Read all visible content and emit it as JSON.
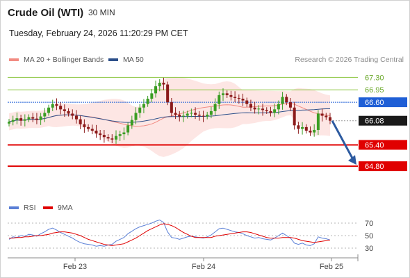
{
  "header": {
    "instrument": "Crude Oil (WTI)",
    "interval": "30 MIN",
    "datetime": "Tuesday, February 24, 2026 11:20:29 PM CET"
  },
  "legend": {
    "ma20_label": "MA 20 + Bollinger Bands",
    "ma20_color": "#f28b82",
    "ma50_label": "MA 50",
    "ma50_color": "#2c4f8a",
    "credit": "Research © 2026 Trading Central"
  },
  "rsi_legend": {
    "rsi_label": "RSI",
    "rsi_color": "#5a7fd6",
    "ma9_label": "9MA",
    "ma9_color": "#e00000"
  },
  "chart_data": {
    "type": "candlestick",
    "ylim": [
      64.0,
      67.6
    ],
    "levels": [
      {
        "value": 67.3,
        "label": "67.30",
        "kind": "resistance",
        "color": "#8cc63f",
        "text_color": "#6aa82a"
      },
      {
        "value": 66.95,
        "label": "66.95",
        "kind": "resistance",
        "color": "#8cc63f",
        "text_color": "#6aa82a"
      },
      {
        "value": 66.6,
        "label": "66.60",
        "kind": "pivot",
        "color": "#1f5fd6",
        "text_color": "#ffffff"
      },
      {
        "value": 66.08,
        "label": "66.08",
        "kind": "last",
        "color": "#aaaaaa",
        "text_color": "#ffffff"
      },
      {
        "value": 65.4,
        "label": "65.40",
        "kind": "support",
        "color": "#e00000",
        "text_color": "#ffffff"
      },
      {
        "value": 64.8,
        "label": "64.80",
        "kind": "support",
        "color": "#e00000",
        "text_color": "#ffffff"
      }
    ],
    "x_ticks": [
      "Feb 23",
      "Feb 24",
      "Feb 25"
    ],
    "rsi_ticks": [
      70,
      50,
      30
    ],
    "close": [
      66.05,
      66.1,
      66.15,
      66.08,
      66.12,
      66.18,
      66.14,
      66.1,
      66.2,
      66.3,
      66.45,
      66.55,
      66.5,
      66.4,
      66.35,
      66.28,
      66.22,
      66.12,
      65.98,
      65.9,
      65.85,
      65.8,
      65.72,
      65.68,
      65.62,
      65.58,
      65.55,
      65.65,
      65.7,
      65.75,
      65.95,
      66.1,
      66.3,
      66.45,
      66.55,
      66.7,
      66.85,
      67.05,
      67.15,
      67.1,
      66.6,
      66.3,
      66.25,
      66.2,
      66.22,
      66.28,
      66.3,
      66.25,
      66.22,
      66.2,
      66.25,
      66.35,
      66.55,
      66.8,
      66.85,
      66.8,
      66.75,
      66.72,
      66.7,
      66.65,
      66.55,
      66.45,
      66.4,
      66.42,
      66.38,
      66.35,
      66.3,
      66.4,
      66.55,
      66.75,
      66.6,
      66.45,
      65.95,
      65.85,
      65.9,
      65.8,
      65.75,
      65.82,
      66.28,
      66.22,
      66.18,
      66.08
    ],
    "rsi": [
      44,
      48,
      47,
      50,
      49,
      52,
      51,
      49,
      53,
      56,
      60,
      62,
      59,
      55,
      52,
      49,
      46,
      42,
      39,
      37,
      36,
      35,
      33,
      34,
      33,
      35,
      36,
      41,
      44,
      47,
      53,
      57,
      61,
      64,
      66,
      68,
      70,
      73,
      75,
      71,
      56,
      47,
      46,
      44,
      46,
      48,
      49,
      48,
      47,
      46,
      48,
      51,
      56,
      61,
      62,
      60,
      58,
      56,
      55,
      53,
      50,
      48,
      46,
      47,
      45,
      44,
      43,
      46,
      50,
      54,
      50,
      46,
      38,
      36,
      38,
      35,
      34,
      37,
      48,
      46,
      45,
      43
    ],
    "rsi_ma9": [
      46,
      46,
      47,
      47,
      48,
      48,
      49,
      50,
      50,
      51,
      52,
      54,
      55,
      56,
      56,
      55,
      54,
      52,
      50,
      47,
      44,
      42,
      40,
      38,
      36,
      35,
      34,
      35,
      36,
      37,
      40,
      43,
      46,
      50,
      54,
      58,
      61,
      64,
      67,
      69,
      68,
      66,
      63,
      59,
      55,
      52,
      49,
      47,
      47,
      47,
      47,
      47,
      49,
      50,
      51,
      52,
      53,
      54,
      55,
      56,
      56,
      55,
      53,
      51,
      49,
      47,
      46,
      46,
      46,
      47,
      47,
      47,
      46,
      44,
      42,
      41,
      40,
      39,
      40,
      41,
      42,
      43
    ]
  }
}
